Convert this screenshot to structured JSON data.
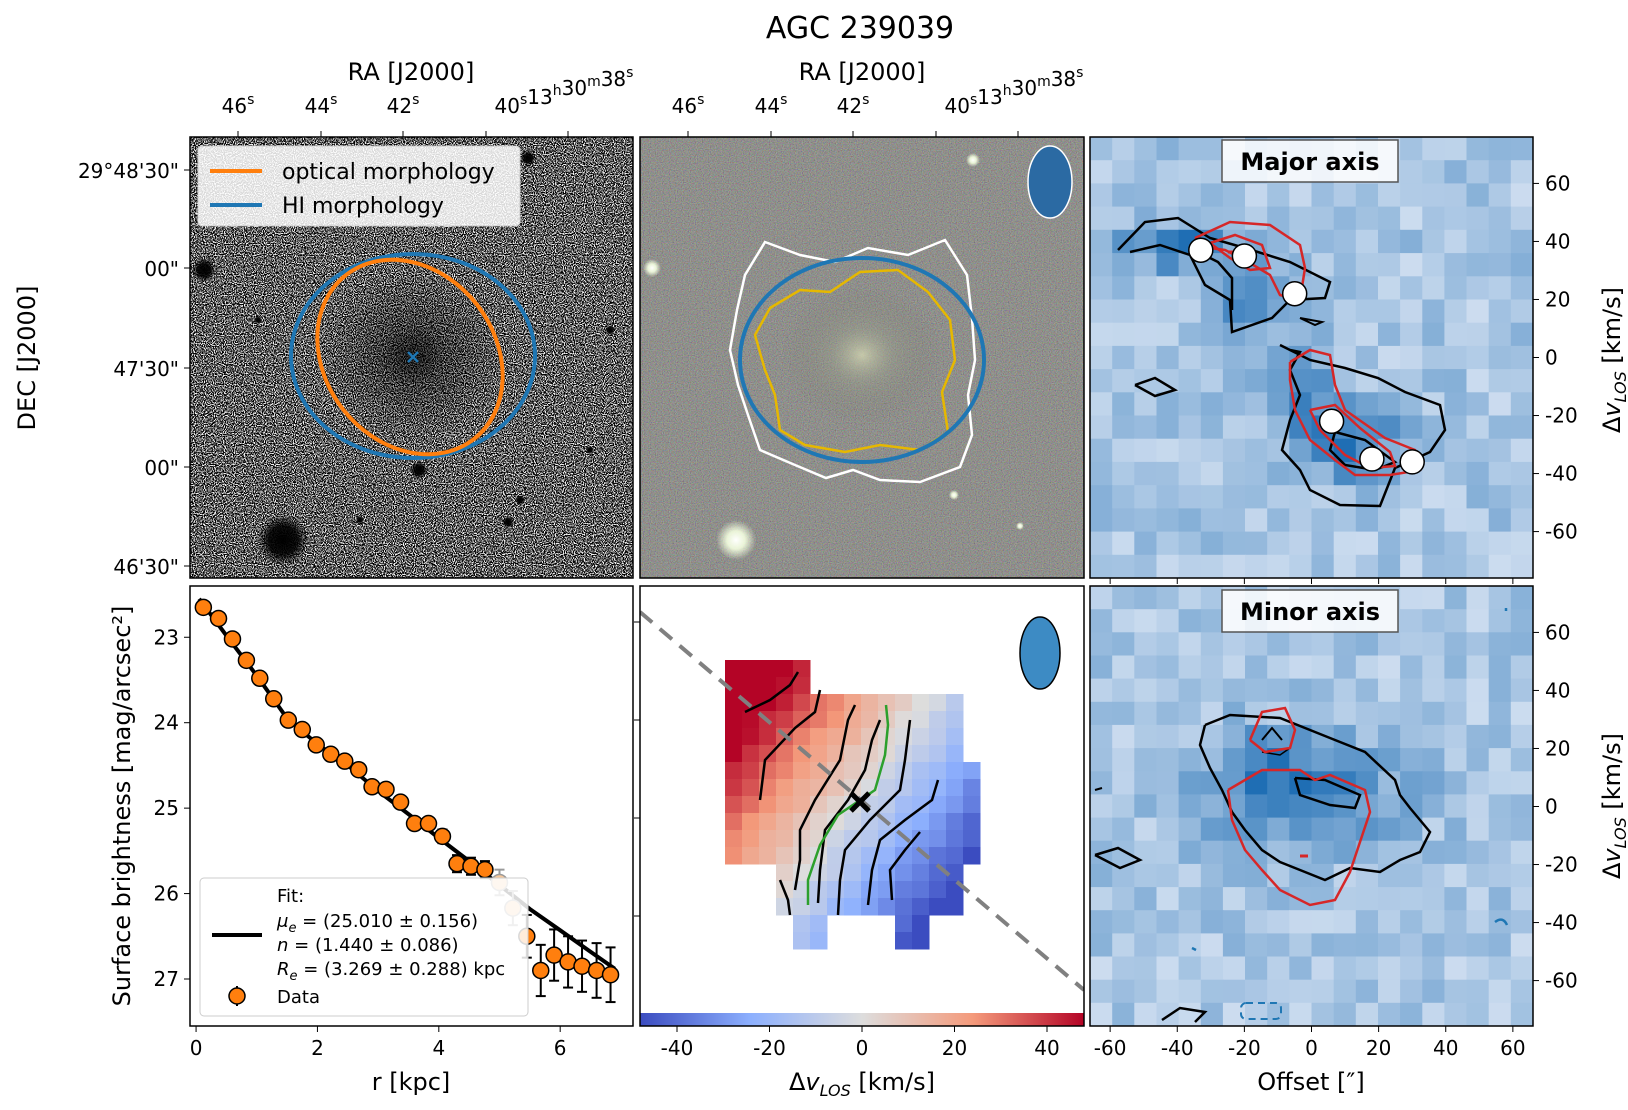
{
  "figure_title": "AGC 239039",
  "colors": {
    "optical": "#ff7f0e",
    "hi": "#1f77b4",
    "contour_black": "#000000",
    "contour_red": "#d62728",
    "contour_white": "#ffffff",
    "contour_gold": "#e6b800",
    "pv_green": "#2ca02c",
    "dashed_axis": "#808080",
    "beam_fill": "#3d8bc4"
  },
  "panels": {
    "optical_image": {
      "top_axis_label": "RA [J2000]",
      "top_ticks": [
        "46s",
        "44s",
        "42s",
        "40s13h30m38s"
      ],
      "top_tick_parts": [
        {
          "main": "46",
          "sup": "s"
        },
        {
          "main": "44",
          "sup": "s"
        },
        {
          "main": "42",
          "sup": "s"
        },
        {
          "main": "40",
          "sup": "s",
          "main2": "13",
          "sup2": "h",
          "main3": "30",
          "sup3": "m",
          "main4": "38",
          "sup4": "s"
        }
      ],
      "left_axis_label": "DEC [J2000]",
      "left_ticks": [
        "29°48'30\"",
        "00\"",
        "47'30\"",
        "00\"",
        "46'30\""
      ],
      "legend": [
        "optical morphology",
        "HI morphology"
      ]
    },
    "color_image": {
      "top_axis_label": "RA [J2000]",
      "top_tick_parts": [
        {
          "main": "46",
          "sup": "s"
        },
        {
          "main": "44",
          "sup": "s"
        },
        {
          "main": "42",
          "sup": "s"
        },
        {
          "main": "40",
          "sup": "s",
          "main2": "13",
          "sup2": "h",
          "main3": "30",
          "sup3": "m",
          "main4": "38",
          "sup4": "s"
        }
      ]
    },
    "major_axis": {
      "title": "Major axis",
      "right_axis_label": "Δv_LOS [km/s]",
      "y_ticks": [
        "60",
        "40",
        "20",
        "0",
        "-20",
        "-40",
        "-60"
      ]
    },
    "minor_axis": {
      "title": "Minor axis",
      "right_axis_label": "Δv_LOS [km/s]",
      "y_ticks": [
        "60",
        "40",
        "20",
        "0",
        "-20",
        "-40",
        "-60"
      ],
      "x_label": "Offset [″]"
    },
    "velocity_field": {
      "x_label": "Δv_LOS [km/s]"
    }
  },
  "chart_data": [
    {
      "type": "scatter",
      "panel": "surface_brightness_profile",
      "xlabel": "r [kpc]",
      "ylabel": "Surface brightness [mag/arcsec²]",
      "xlim": [
        -0.1,
        7.2
      ],
      "ylim": [
        27.55,
        22.4
      ],
      "y_inverted": true,
      "xticks": [
        0,
        2,
        4,
        6
      ],
      "yticks": [
        23,
        24,
        25,
        26,
        27
      ],
      "legend": {
        "fit_title": "Fit:",
        "fit_lines": [
          "μe = (25.010 ± 0.156)",
          "n = (1.440 ± 0.086)",
          "Re = (3.269 ± 0.288) kpc"
        ],
        "data_label": "Data"
      },
      "series": [
        {
          "name": "Data",
          "x": [
            0.12,
            0.37,
            0.6,
            0.83,
            1.05,
            1.28,
            1.52,
            1.75,
            1.98,
            2.22,
            2.45,
            2.68,
            2.9,
            3.13,
            3.37,
            3.6,
            3.83,
            4.06,
            4.3,
            4.53,
            4.76,
            5.0,
            5.22,
            5.45,
            5.68,
            5.9,
            6.13,
            6.36,
            6.6,
            6.83
          ],
          "y": [
            22.65,
            22.78,
            23.02,
            23.27,
            23.48,
            23.72,
            23.97,
            24.08,
            24.26,
            24.37,
            24.45,
            24.55,
            24.75,
            24.78,
            24.93,
            25.18,
            25.18,
            25.33,
            25.65,
            25.68,
            25.72,
            25.87,
            26.17,
            26.5,
            26.9,
            26.72,
            26.8,
            26.85,
            26.9,
            26.95
          ],
          "yerr": [
            0.03,
            0.03,
            0.03,
            0.04,
            0.04,
            0.04,
            0.04,
            0.04,
            0.05,
            0.05,
            0.05,
            0.05,
            0.05,
            0.06,
            0.06,
            0.07,
            0.07,
            0.08,
            0.1,
            0.1,
            0.1,
            0.15,
            0.2,
            0.25,
            0.3,
            0.3,
            0.3,
            0.3,
            0.32,
            0.32
          ],
          "faded_indices": [
            21,
            22
          ]
        },
        {
          "name": "Fit",
          "x": [
            0.05,
            0.5,
            1.0,
            1.5,
            2.0,
            2.5,
            3.0,
            3.5,
            4.0,
            4.5,
            5.0,
            5.5,
            6.0,
            6.5,
            6.9
          ],
          "y": [
            22.55,
            22.98,
            23.45,
            23.95,
            24.25,
            24.5,
            24.8,
            25.07,
            25.35,
            25.62,
            25.9,
            26.18,
            26.43,
            26.68,
            26.88
          ]
        }
      ]
    },
    {
      "type": "heatmap",
      "panel": "velocity_field",
      "xlabel": "Δv_LOS [km/s]",
      "colorbar_ticks": [
        -40,
        -20,
        0,
        20,
        40
      ],
      "colorbar_range": [
        -48,
        48
      ],
      "colormap": "coolwarm"
    }
  ]
}
